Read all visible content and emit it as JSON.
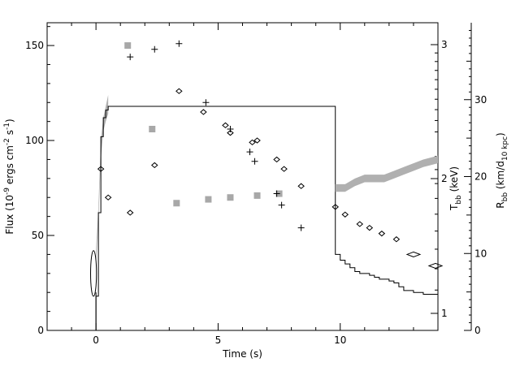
{
  "chart_data": {
    "type": "scatter",
    "xlabel": "Time (s)",
    "ylabel_main": "Flux (10",
    "ylabel_exp1": "-9",
    "ylabel_mid": " ergs cm",
    "ylabel_exp2": "-2",
    "ylabel_s": " s",
    "ylabel_exp3": "-1",
    "ylabel_close": ")",
    "tbb_label_main": "T",
    "tbb_label_sub": "bb",
    "tbb_label_unit": " (keV)",
    "rbb_label_main": "R",
    "rbb_label_sub": "bb",
    "rbb_label_open": " (km/d",
    "rbb_label_sub2": "10 kpc",
    "rbb_label_close": ")",
    "xlim": [
      -2,
      14
    ],
    "ylim": [
      0,
      162
    ],
    "x_ticks": [
      "0",
      "5",
      "10"
    ],
    "y_ticks": [
      "0",
      "50",
      "100",
      "150"
    ],
    "tbb_ticks": [
      "1",
      "2",
      "3"
    ],
    "rbb_ticks": [
      "0",
      "10",
      "20",
      "30"
    ],
    "grid": false,
    "flux_step": {
      "x": [
        -0.2,
        0.0,
        0.1,
        0.2,
        0.3,
        0.4,
        0.5,
        9.8,
        10.0,
        10.2,
        10.4,
        10.6,
        10.8,
        11.0,
        11.2,
        11.4,
        11.6,
        11.8,
        12.0,
        12.2,
        12.4,
        12.6,
        13.0,
        13.4,
        14.0
      ],
      "y": [
        0,
        18,
        62,
        102,
        112,
        116,
        118,
        40,
        37,
        35,
        33,
        31,
        30,
        30,
        29,
        28,
        27,
        27,
        26,
        25,
        23,
        21,
        20,
        19,
        19
      ]
    },
    "flux_band": {
      "x": [
        0.0,
        0.1,
        0.2,
        0.3,
        0.4,
        0.5
      ],
      "low": [
        34,
        58,
        90,
        105,
        110,
        114
      ],
      "high": [
        42,
        65,
        100,
        112,
        118,
        124
      ]
    },
    "flux_early_ellipse": {
      "x": -0.1,
      "y": 30,
      "dx": 0.12,
      "dy": 12
    },
    "temperature_points": {
      "x": [
        1.4,
        2.4,
        3.4,
        4.5,
        5.5,
        6.3,
        6.5,
        7.4,
        7.6,
        8.4
      ],
      "y": [
        144,
        148,
        151,
        120,
        106,
        94,
        89,
        72,
        66,
        54
      ]
    },
    "temperature_band": {
      "x": [
        9.8,
        10.2,
        10.6,
        11.0,
        11.4,
        11.8,
        12.2,
        12.6,
        13.0,
        13.4,
        14.0
      ],
      "low": [
        73,
        73,
        76,
        78,
        78,
        78,
        80,
        82,
        84,
        86,
        88
      ],
      "high": [
        77,
        77,
        80,
        82,
        82,
        82,
        84,
        86,
        88,
        90,
        92
      ]
    },
    "temperature_markers": {
      "x": [
        1.3,
        2.3,
        3.3,
        4.6,
        5.5,
        6.6,
        7.5
      ],
      "y": [
        150,
        106,
        67,
        69,
        70,
        71,
        72
      ]
    },
    "radius_points": {
      "x": [
        0.2,
        0.5,
        1.4,
        2.4,
        3.4,
        4.4,
        5.3,
        5.5,
        6.4,
        6.6,
        7.4,
        7.7,
        8.4,
        9.8,
        10.2,
        10.8,
        11.2,
        11.7,
        12.3,
        13.0,
        13.9
      ],
      "y": [
        85,
        70,
        62,
        87,
        126,
        115,
        108,
        104,
        99,
        100,
        90,
        85,
        76,
        65,
        61,
        56,
        54,
        51,
        48,
        40,
        34
      ]
    }
  }
}
